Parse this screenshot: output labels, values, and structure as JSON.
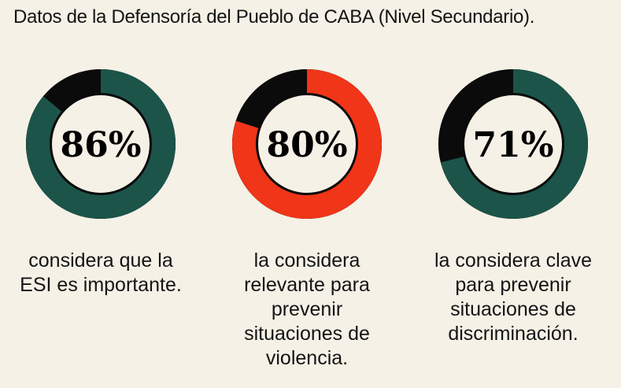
{
  "title": "Datos de la Defensoría del Pueblo de CABA (Nivel Secundario).",
  "chart_data": [
    {
      "type": "pie",
      "value": 86,
      "label": "86%",
      "caption": "considera que la ESI es importante.",
      "color": "#1c5449",
      "remainder_color": "#0b0b0b"
    },
    {
      "type": "pie",
      "value": 80,
      "label": "80%",
      "caption": "la considera relevante para prevenir situaciones de violencia.",
      "color": "#f03518",
      "remainder_color": "#0b0b0b"
    },
    {
      "type": "pie",
      "value": 71,
      "label": "71%",
      "caption": "la considera clave para prevenir situaciones de discriminación.",
      "color": "#1c5449",
      "remainder_color": "#0b0b0b"
    }
  ]
}
